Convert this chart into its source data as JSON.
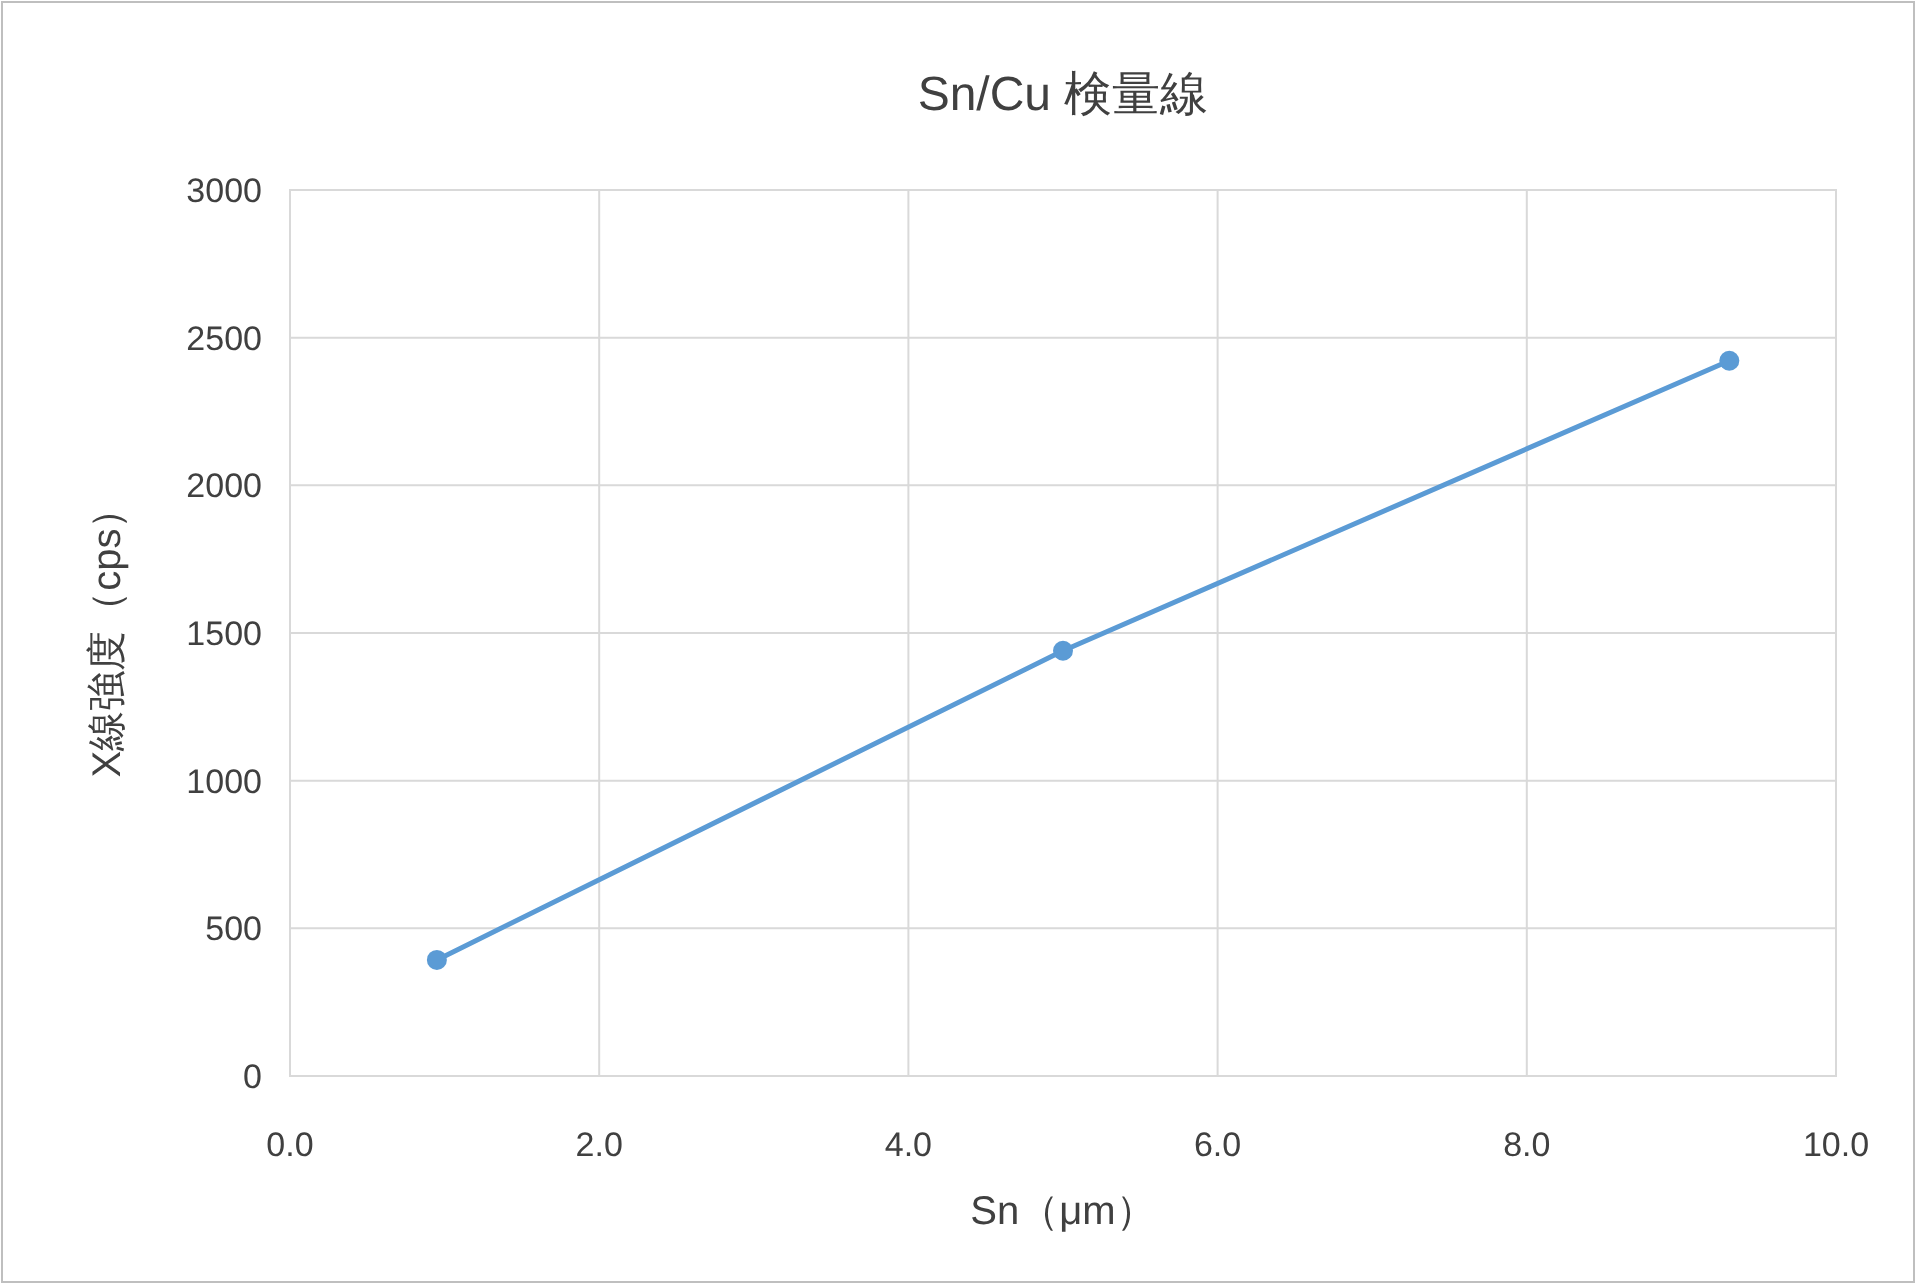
{
  "chart_data": {
    "type": "line",
    "title": "Sn/Cu 検量線",
    "xlabel": "Sn（μm）",
    "ylabel": "X線強度（cps）",
    "series": [
      {
        "color": "#5b9bd5",
        "x": [
          0.95,
          5.0,
          9.31
        ],
        "values": [
          393,
          1440,
          2422
        ]
      }
    ],
    "xlim": [
      0,
      10
    ],
    "xticks": [
      {
        "value": 0,
        "label": "0.0"
      },
      {
        "value": 2,
        "label": "2.0"
      },
      {
        "value": 4,
        "label": "4.0"
      },
      {
        "value": 6,
        "label": "6.0"
      },
      {
        "value": 8,
        "label": "8.0"
      },
      {
        "value": 10,
        "label": "10.0"
      }
    ],
    "ylim": [
      0,
      3000
    ],
    "yticks": [
      0,
      500,
      1000,
      1500,
      2000,
      2500,
      3000
    ],
    "grid": true,
    "marker": "circle",
    "line_style": "solid"
  }
}
